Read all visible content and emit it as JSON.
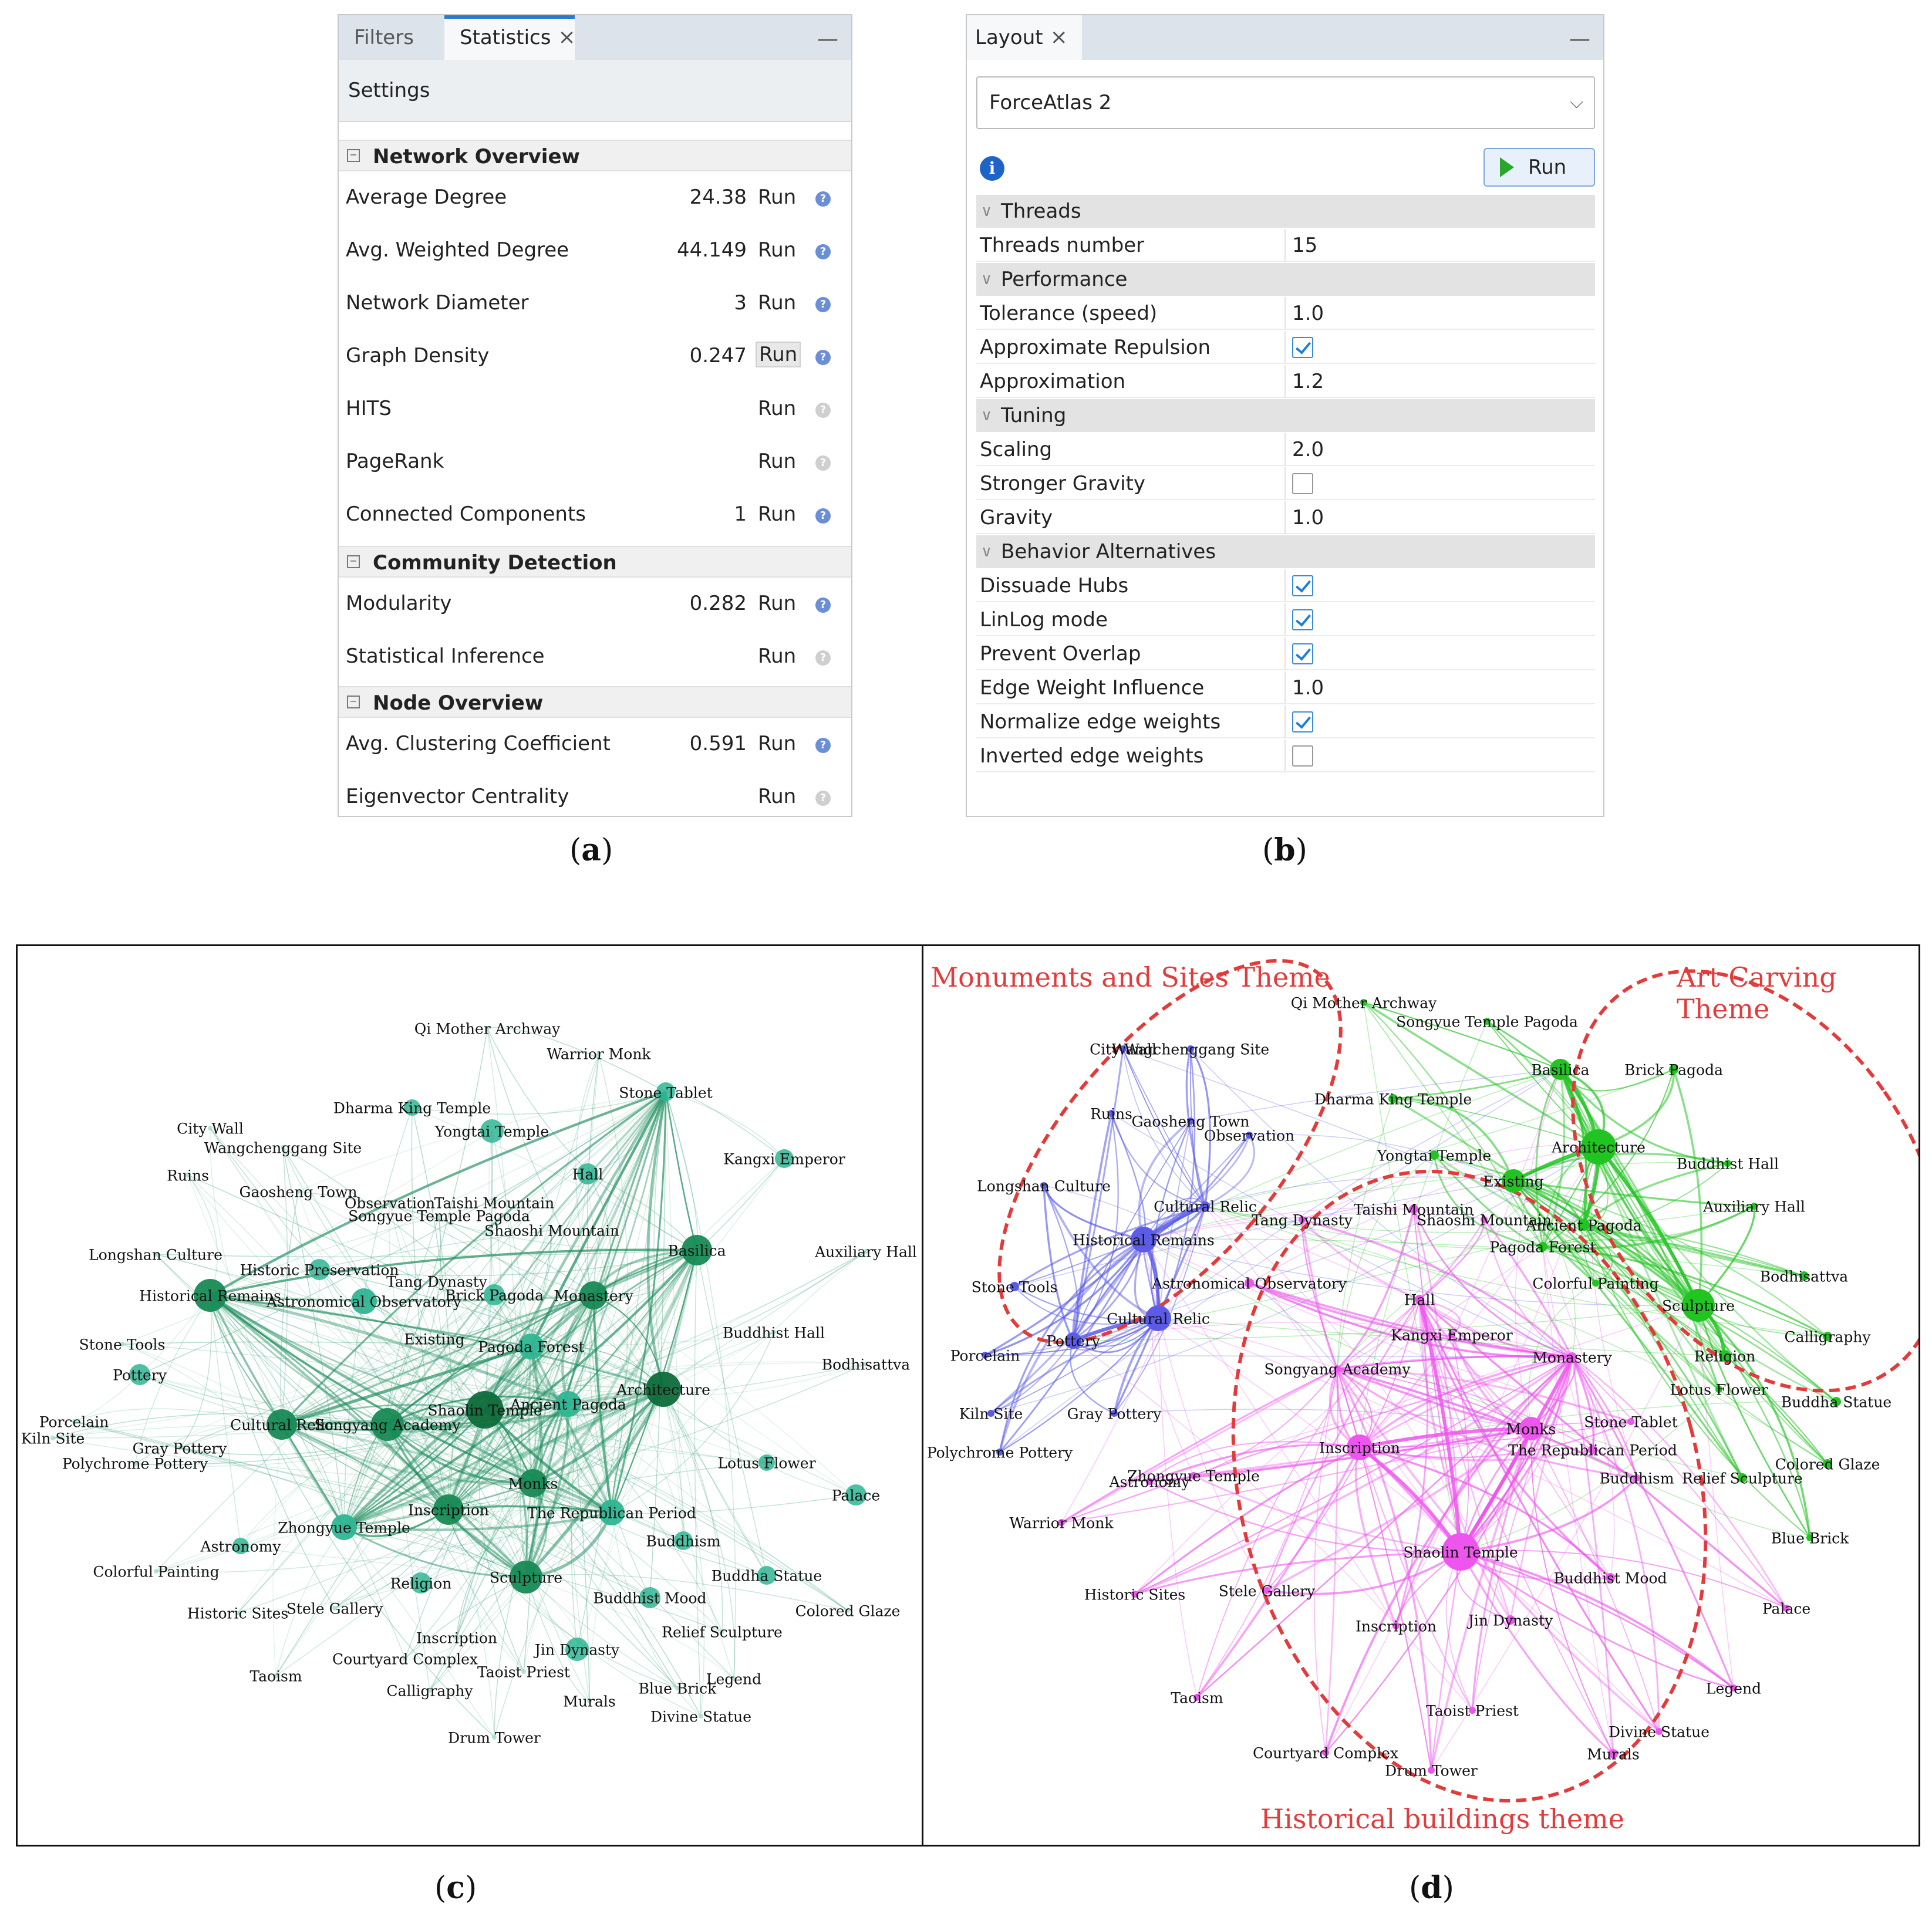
{
  "statistics_panel": {
    "tabs": [
      "Filters",
      "Statistics"
    ],
    "settings_label": "Settings",
    "sections": [
      {
        "title": "Network Overview",
        "rows": [
          {
            "label": "Average Degree",
            "value": "24.38",
            "run": "Run",
            "help_active": true
          },
          {
            "label": "Avg. Weighted Degree",
            "value": "44.149",
            "run": "Run",
            "help_active": true
          },
          {
            "label": "Network Diameter",
            "value": "3",
            "run": "Run",
            "help_active": true
          },
          {
            "label": "Graph Density",
            "value": "0.247",
            "run": "Run",
            "help_active": true
          },
          {
            "label": "HITS",
            "value": "",
            "run": "Run",
            "help_active": false
          },
          {
            "label": "PageRank",
            "value": "",
            "run": "Run",
            "help_active": false
          },
          {
            "label": "Connected Components",
            "value": "1",
            "run": "Run",
            "help_active": true
          }
        ]
      },
      {
        "title": "Community Detection",
        "rows": [
          {
            "label": "Modularity",
            "value": "0.282",
            "run": "Run",
            "help_active": true
          },
          {
            "label": "Statistical Inference",
            "value": "",
            "run": "Run",
            "help_active": false
          }
        ]
      },
      {
        "title": "Node Overview",
        "rows": [
          {
            "label": "Avg. Clustering Coefficient",
            "value": "0.591",
            "run": "Run",
            "help_active": true
          },
          {
            "label": "Eigenvector Centrality",
            "value": "",
            "run": "Run",
            "help_active": false
          }
        ]
      }
    ]
  },
  "layout_panel": {
    "tab": "Layout",
    "algorithm": "ForceAtlas 2",
    "run_label": "Run",
    "groups": [
      {
        "title": "Threads",
        "props": [
          {
            "label": "Threads number",
            "value": "15"
          }
        ]
      },
      {
        "title": "Performance",
        "props": [
          {
            "label": "Tolerance (speed)",
            "value": "1.0"
          },
          {
            "label": "Approximate Repulsion",
            "checked": true
          },
          {
            "label": "Approximation",
            "value": "1.2"
          }
        ]
      },
      {
        "title": "Tuning",
        "props": [
          {
            "label": "Scaling",
            "value": "2.0"
          },
          {
            "label": "Stronger Gravity",
            "checked": false
          },
          {
            "label": "Gravity",
            "value": "1.0"
          }
        ]
      },
      {
        "title": "Behavior Alternatives",
        "props": [
          {
            "label": "Dissuade Hubs",
            "checked": true
          },
          {
            "label": "LinLog mode",
            "checked": true
          },
          {
            "label": "Prevent Overlap",
            "checked": true
          },
          {
            "label": "Edge Weight Influence",
            "value": "1.0"
          },
          {
            "label": "Normalize edge weights",
            "checked": true
          },
          {
            "label": "Inverted edge weights",
            "checked": false
          }
        ]
      }
    ]
  },
  "captions": {
    "a": "a",
    "b": "b",
    "c": "c",
    "d": "d"
  },
  "graph_c": {
    "accent": "#1a8a5a",
    "nodes": [
      {
        "label": "Qi Mother Archway"
      },
      {
        "label": "Warrior Monk"
      },
      {
        "label": "Stone Tablet"
      },
      {
        "label": "Dharma King Temple"
      },
      {
        "label": "City Wall"
      },
      {
        "label": "Yongtai Temple"
      },
      {
        "label": "Wangchenggang Site"
      },
      {
        "label": "Kangxi Emperor"
      },
      {
        "label": "Ruins"
      },
      {
        "label": "Gaosheng Town"
      },
      {
        "label": "Hall"
      },
      {
        "label": "Observation"
      },
      {
        "label": "Taishi Mountain"
      },
      {
        "label": "Songyue Temple Pagoda"
      },
      {
        "label": "Basilica"
      },
      {
        "label": "Shaoshi Mountain"
      },
      {
        "label": "Longshan Culture"
      },
      {
        "label": "Auxiliary Hall"
      },
      {
        "label": "Historic Preservation"
      },
      {
        "label": "Tang Dynasty"
      },
      {
        "label": "Historical Remains"
      },
      {
        "label": "Brick Pagoda"
      },
      {
        "label": "Monastery"
      },
      {
        "label": "Astronomical Observatory"
      },
      {
        "label": "Buddhist Hall"
      },
      {
        "label": "Stone Tools"
      },
      {
        "label": "Existing"
      },
      {
        "label": "Pagoda Forest"
      },
      {
        "label": "Bodhisattva"
      },
      {
        "label": "Pottery"
      },
      {
        "label": "Architecture"
      },
      {
        "label": "Shaolin Temple"
      },
      {
        "label": "Ancient Pagoda"
      },
      {
        "label": "Porcelain"
      },
      {
        "label": "Cultural Relic"
      },
      {
        "label": "Songyang Academy"
      },
      {
        "label": "Kiln Site"
      },
      {
        "label": "Gray Pottery"
      },
      {
        "label": "Polychrome Pottery"
      },
      {
        "label": "Lotus Flower"
      },
      {
        "label": "Monks"
      },
      {
        "label": "Inscription"
      },
      {
        "label": "The Republican Period"
      },
      {
        "label": "Palace"
      },
      {
        "label": "Zhongyue Temple"
      },
      {
        "label": "Buddhism"
      },
      {
        "label": "Astronomy"
      },
      {
        "label": "Colorful Painting"
      },
      {
        "label": "Buddha Statue"
      },
      {
        "label": "Sculpture"
      },
      {
        "label": "Religion"
      },
      {
        "label": "Buddhist Mood"
      },
      {
        "label": "Historic Sites"
      },
      {
        "label": "Stele Gallery"
      },
      {
        "label": "Colored Glaze"
      },
      {
        "label": "Relief Sculpture"
      },
      {
        "label": "Inscription"
      },
      {
        "label": "Jin Dynasty"
      },
      {
        "label": "Courtyard Complex"
      },
      {
        "label": "Legend"
      },
      {
        "label": "Taoism"
      },
      {
        "label": "Taoist Priest"
      },
      {
        "label": "Calligraphy"
      },
      {
        "label": "Blue Brick"
      },
      {
        "label": "Murals"
      },
      {
        "label": "Divine Statue"
      },
      {
        "label": "Drum Tower"
      }
    ]
  },
  "graph_d": {
    "themes": [
      "Monuments and Sites Theme",
      "Art Carving Theme",
      "Historical buildings theme"
    ],
    "theme_color": "#e23b3b",
    "colors": {
      "blue": "#5b5be8",
      "green": "#22c422",
      "pink": "#ee55ee"
    },
    "nodes": [
      {
        "label": "Qi Mother Archway",
        "group": "green"
      },
      {
        "label": "Songyue Temple Pagoda",
        "group": "green"
      },
      {
        "label": "City Wall",
        "group": "blue"
      },
      {
        "label": "Wangchenggang Site",
        "group": "blue"
      },
      {
        "label": "Basilica",
        "group": "green"
      },
      {
        "label": "Brick Pagoda",
        "group": "green"
      },
      {
        "label": "Dharma King Temple",
        "group": "green"
      },
      {
        "label": "Ruins",
        "group": "blue"
      },
      {
        "label": "Gaosheng Town",
        "group": "blue"
      },
      {
        "label": "Observation",
        "group": "blue"
      },
      {
        "label": "Architecture",
        "group": "green"
      },
      {
        "label": "Yongtai Temple",
        "group": "green"
      },
      {
        "label": "Buddhist Hall",
        "group": "green"
      },
      {
        "label": "Existing",
        "group": "green"
      },
      {
        "label": "Longshan Culture",
        "group": "blue"
      },
      {
        "label": "Cultural Relic",
        "group": "blue"
      },
      {
        "label": "Taishi Mountain",
        "group": "pink"
      },
      {
        "label": "Auxiliary Hall",
        "group": "green"
      },
      {
        "label": "Tang Dynasty",
        "group": "pink"
      },
      {
        "label": "Shaoshi Mountain",
        "group": "pink"
      },
      {
        "label": "Ancient Pagoda",
        "group": "green"
      },
      {
        "label": "Historical Remains",
        "group": "blue"
      },
      {
        "label": "Pagoda Forest",
        "group": "green"
      },
      {
        "label": "Bodhisattva",
        "group": "green"
      },
      {
        "label": "Astronomical Observatory",
        "group": "pink"
      },
      {
        "label": "Colorful Painting",
        "group": "green"
      },
      {
        "label": "Stone Tools",
        "group": "blue"
      },
      {
        "label": "Hall",
        "group": "pink"
      },
      {
        "label": "Sculpture",
        "group": "green"
      },
      {
        "label": "Cultural Relic",
        "group": "blue"
      },
      {
        "label": "Calligraphy",
        "group": "green"
      },
      {
        "label": "Kangxi Emperor",
        "group": "pink"
      },
      {
        "label": "Pottery",
        "group": "blue"
      },
      {
        "label": "Porcelain",
        "group": "blue"
      },
      {
        "label": "Monastery",
        "group": "pink"
      },
      {
        "label": "Religion",
        "group": "green"
      },
      {
        "label": "Songyang Academy",
        "group": "pink"
      },
      {
        "label": "Lotus Flower",
        "group": "green"
      },
      {
        "label": "Buddha Statue",
        "group": "green"
      },
      {
        "label": "Kiln Site",
        "group": "blue"
      },
      {
        "label": "Gray Pottery",
        "group": "blue"
      },
      {
        "label": "Stone Tablet",
        "group": "pink"
      },
      {
        "label": "Monks",
        "group": "pink"
      },
      {
        "label": "Inscription",
        "group": "pink"
      },
      {
        "label": "The Republican Period",
        "group": "pink"
      },
      {
        "label": "Polychrome Pottery",
        "group": "blue"
      },
      {
        "label": "Colored Glaze",
        "group": "green"
      },
      {
        "label": "Zhongyue Temple",
        "group": "pink"
      },
      {
        "label": "Astronomy",
        "group": "pink"
      },
      {
        "label": "Buddhism",
        "group": "pink"
      },
      {
        "label": "Relief Sculpture",
        "group": "green"
      },
      {
        "label": "Warrior Monk",
        "group": "pink"
      },
      {
        "label": "Blue Brick",
        "group": "green"
      },
      {
        "label": "Shaolin Temple",
        "group": "pink"
      },
      {
        "label": "Buddhist Mood",
        "group": "pink"
      },
      {
        "label": "Historic Sites",
        "group": "pink"
      },
      {
        "label": "Stele Gallery",
        "group": "pink"
      },
      {
        "label": "Jin Dynasty",
        "group": "pink"
      },
      {
        "label": "Palace",
        "group": "pink"
      },
      {
        "label": "Inscription",
        "group": "pink"
      },
      {
        "label": "Legend",
        "group": "pink"
      },
      {
        "label": "Taoism",
        "group": "pink"
      },
      {
        "label": "Taoist Priest",
        "group": "pink"
      },
      {
        "label": "Divine Statue",
        "group": "pink"
      },
      {
        "label": "Courtyard Complex",
        "group": "pink"
      },
      {
        "label": "Murals",
        "group": "pink"
      },
      {
        "label": "Drum Tower",
        "group": "pink"
      }
    ]
  }
}
